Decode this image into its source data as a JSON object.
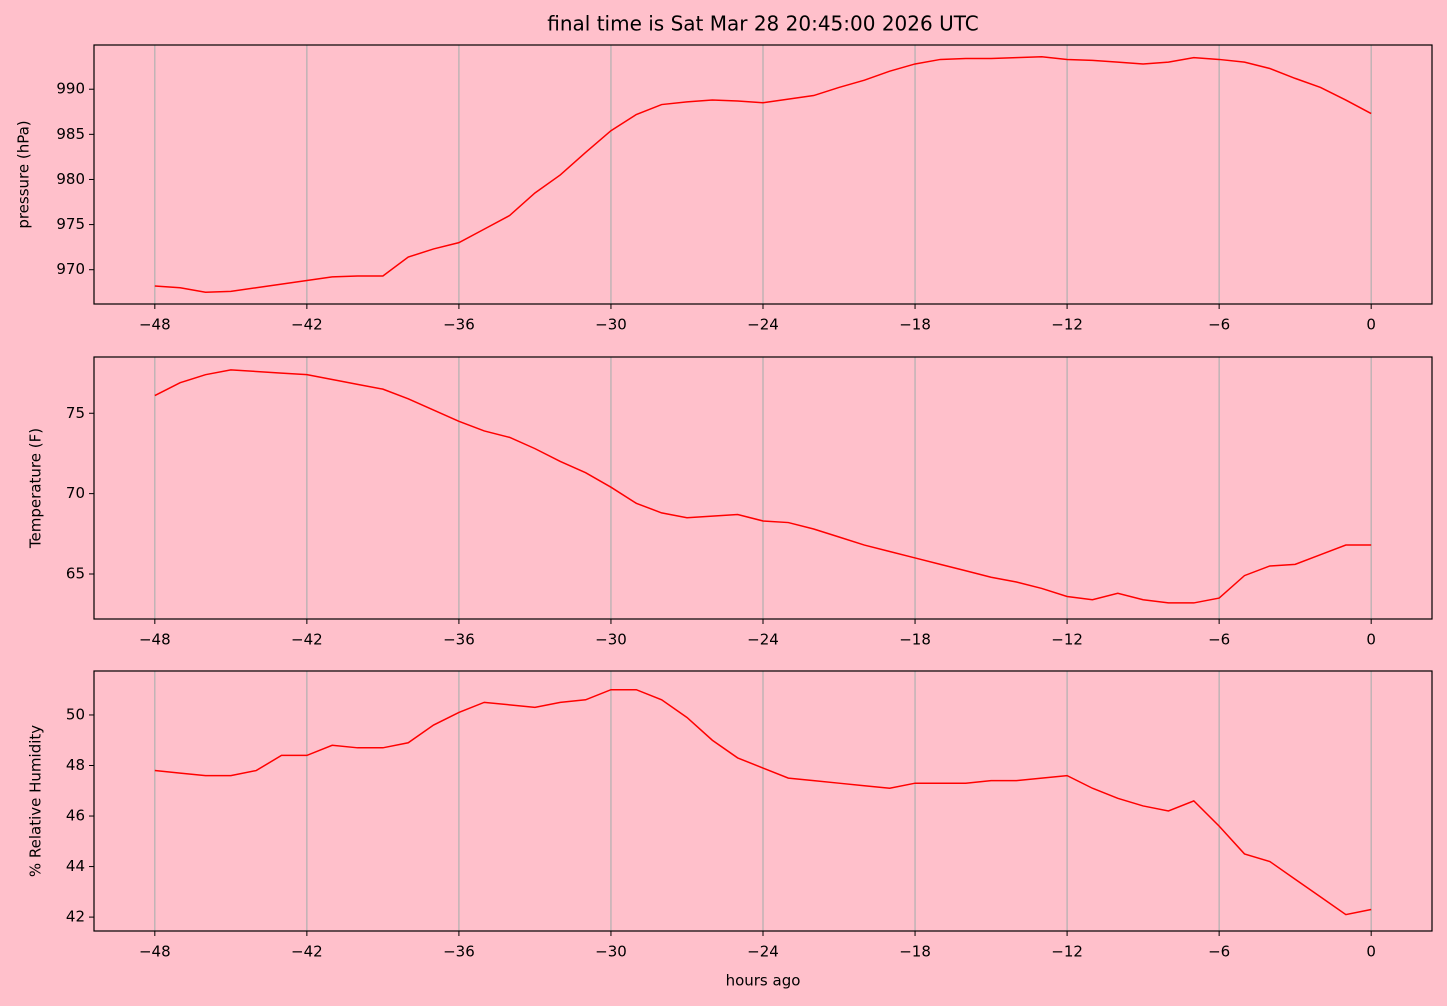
{
  "chart_data": [
    {
      "type": "line",
      "title": "final time is Sat Mar 28 20:45:00 2026  UTC",
      "ylabel": "pressure (hPa)",
      "color": "#ff0000",
      "grid": "x",
      "x": [
        -48,
        -47,
        -46,
        -45,
        -44,
        -43,
        -42,
        -41,
        -40,
        -39,
        -38,
        -37,
        -36,
        -35,
        -34,
        -33,
        -32,
        -31,
        -30,
        -29,
        -28,
        -27,
        -26,
        -25,
        -24,
        -23,
        -22,
        -21,
        -20,
        -19,
        -18,
        -17,
        -16,
        -15,
        -14,
        -13,
        -12,
        -11,
        -10,
        -9,
        -8,
        -7,
        -6,
        -5,
        -4,
        -3,
        -2,
        -1,
        0
      ],
      "values": [
        968.2,
        968.0,
        967.5,
        967.6,
        968.0,
        968.4,
        968.8,
        969.2,
        969.3,
        969.3,
        971.4,
        972.3,
        973.0,
        974.5,
        976.0,
        978.5,
        980.5,
        983.0,
        985.4,
        987.2,
        988.3,
        988.6,
        988.8,
        988.7,
        988.5,
        988.9,
        989.3,
        990.2,
        991.0,
        992.0,
        992.8,
        993.3,
        993.4,
        993.4,
        993.5,
        993.6,
        993.3,
        993.2,
        993.0,
        992.8,
        993.0,
        993.5,
        993.3,
        993.0,
        992.3,
        991.2,
        990.2,
        988.8,
        987.3
      ],
      "xlim": [
        -50.4,
        2.4
      ],
      "ylim": [
        966.2,
        994.9
      ],
      "xticks": [
        {
          "value": -48,
          "label": "−48"
        },
        {
          "value": -42,
          "label": "−42"
        },
        {
          "value": -36,
          "label": "−36"
        },
        {
          "value": -30,
          "label": "−30"
        },
        {
          "value": -24,
          "label": "−24"
        },
        {
          "value": -18,
          "label": "−18"
        },
        {
          "value": -12,
          "label": "−12"
        },
        {
          "value": -6,
          "label": "−6"
        },
        0
      ],
      "yticks": [
        970,
        975,
        980,
        985,
        990
      ]
    },
    {
      "type": "line",
      "ylabel": "Temperature (F)",
      "color": "#ff0000",
      "grid": "x",
      "x": [
        -48,
        -47,
        -46,
        -45,
        -44,
        -43,
        -42,
        -41,
        -40,
        -39,
        -38,
        -37,
        -36,
        -35,
        -34,
        -33,
        -32,
        -31,
        -30,
        -29,
        -28,
        -27,
        -26,
        -25,
        -24,
        -23,
        -22,
        -21,
        -20,
        -19,
        -18,
        -17,
        -16,
        -15,
        -14,
        -13,
        -12,
        -11,
        -10,
        -9,
        -8,
        -7,
        -6,
        -5,
        -4,
        -3,
        -2,
        -1,
        0
      ],
      "values": [
        76.1,
        76.9,
        77.4,
        77.7,
        77.6,
        77.5,
        77.4,
        77.1,
        76.8,
        76.5,
        75.9,
        75.2,
        74.5,
        73.9,
        73.5,
        72.8,
        72.0,
        71.3,
        70.4,
        69.4,
        68.8,
        68.5,
        68.6,
        68.7,
        68.3,
        68.2,
        67.8,
        67.3,
        66.8,
        66.4,
        66.0,
        65.6,
        65.2,
        64.8,
        64.5,
        64.1,
        63.6,
        63.4,
        63.8,
        63.4,
        63.2,
        63.2,
        63.5,
        64.9,
        65.5,
        65.6,
        66.2,
        66.8,
        66.8
      ],
      "xlim": [
        -50.4,
        2.4
      ],
      "ylim": [
        62.2,
        78.5
      ],
      "xticks": [
        {
          "value": -48,
          "label": "−48"
        },
        {
          "value": -42,
          "label": "−42"
        },
        {
          "value": -36,
          "label": "−36"
        },
        {
          "value": -30,
          "label": "−30"
        },
        {
          "value": -24,
          "label": "−24"
        },
        {
          "value": -18,
          "label": "−18"
        },
        {
          "value": -12,
          "label": "−12"
        },
        {
          "value": -6,
          "label": "−6"
        },
        0
      ],
      "yticks": [
        65,
        70,
        75
      ]
    },
    {
      "type": "line",
      "ylabel": "% Relative Humidity",
      "xlabel": "hours ago",
      "color": "#ff0000",
      "grid": "x",
      "x": [
        -48,
        -47,
        -46,
        -45,
        -44,
        -43,
        -42,
        -41,
        -40,
        -39,
        -38,
        -37,
        -36,
        -35,
        -34,
        -33,
        -32,
        -31,
        -30,
        -29,
        -28,
        -27,
        -26,
        -25,
        -24,
        -23,
        -22,
        -21,
        -20,
        -19,
        -18,
        -17,
        -16,
        -15,
        -14,
        -13,
        -12,
        -11,
        -10,
        -9,
        -8,
        -7,
        -6,
        -5,
        -4,
        -3,
        -2,
        -1,
        0
      ],
      "values": [
        47.8,
        47.7,
        47.6,
        47.6,
        47.8,
        48.4,
        48.4,
        48.8,
        48.7,
        48.7,
        48.9,
        49.6,
        50.1,
        50.5,
        50.4,
        50.3,
        50.5,
        50.6,
        51.0,
        51.0,
        50.6,
        49.9,
        49.0,
        48.3,
        47.9,
        47.5,
        47.4,
        47.3,
        47.2,
        47.1,
        47.3,
        47.3,
        47.3,
        47.4,
        47.4,
        47.5,
        47.6,
        47.1,
        46.7,
        46.4,
        46.2,
        46.6,
        45.6,
        44.5,
        44.2,
        43.5,
        42.8,
        42.1,
        42.3
      ],
      "xlim": [
        -50.4,
        2.4
      ],
      "ylim": [
        41.45,
        51.74
      ],
      "xticks": [
        {
          "value": -48,
          "label": "−48"
        },
        {
          "value": -42,
          "label": "−42"
        },
        {
          "value": -36,
          "label": "−36"
        },
        {
          "value": -30,
          "label": "−30"
        },
        {
          "value": -24,
          "label": "−24"
        },
        {
          "value": -18,
          "label": "−18"
        },
        {
          "value": -12,
          "label": "−12"
        },
        {
          "value": -6,
          "label": "−6"
        },
        0
      ],
      "yticks": [
        42,
        44,
        46,
        48,
        50
      ]
    }
  ]
}
